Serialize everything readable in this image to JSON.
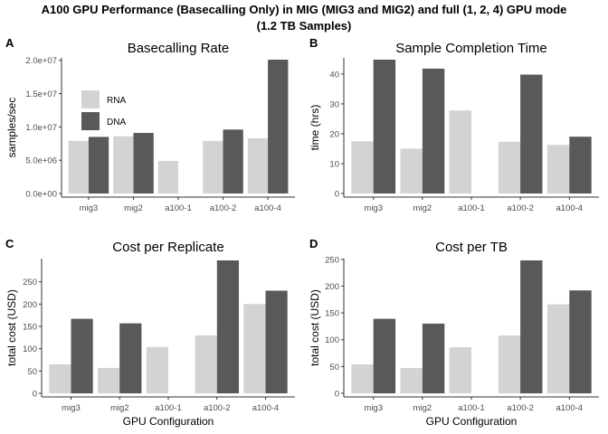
{
  "figure": {
    "title_line1": "A100 GPU Performance (Basecalling Only) in MIG (MIG3 and MIG2) and full (1, 2, 4) GPU mode",
    "title_line2": "(1.2 TB Samples)"
  },
  "colors": {
    "RNA": "#d3d3d3",
    "DNA": "#595959",
    "axis": "#333333",
    "tick_text": "#4d4d4d"
  },
  "chart_data": [
    {
      "panel": "A",
      "type": "bar",
      "title": "Basecalling Rate",
      "xlabel": "",
      "ylabel": "samples/sec",
      "categories": [
        "mig3",
        "mig2",
        "a100-1",
        "a100-2",
        "a100-4"
      ],
      "series": [
        {
          "name": "RNA",
          "values": [
            7900000,
            8600000,
            4900000,
            7900000,
            8300000
          ]
        },
        {
          "name": "DNA",
          "values": [
            8500000,
            9100000,
            null,
            9600000,
            20100000
          ]
        }
      ],
      "ylim": [
        0,
        20100000
      ],
      "yticks": [
        0,
        5000000,
        10000000,
        15000000,
        20000000
      ],
      "ytick_labels": [
        "0.0e+00",
        "5.0e+06",
        "1.0e+07",
        "1.5e+07",
        "2.0e+07"
      ],
      "legend": {
        "entries": [
          "RNA",
          "DNA"
        ],
        "position": "top-left"
      },
      "grid": false
    },
    {
      "panel": "B",
      "type": "bar",
      "title": "Sample Completion Time",
      "xlabel": "",
      "ylabel": "time (hrs)",
      "categories": [
        "mig3",
        "mig2",
        "a100-1",
        "a100-2",
        "a100-4"
      ],
      "series": [
        {
          "name": "RNA",
          "values": [
            17.5,
            15,
            27.8,
            17.3,
            16.3
          ]
        },
        {
          "name": "DNA",
          "values": [
            44.8,
            41.8,
            null,
            39.8,
            19
          ]
        }
      ],
      "ylim": [
        0,
        44.8
      ],
      "yticks": [
        0,
        10,
        20,
        30,
        40
      ],
      "ytick_labels": [
        "0",
        "10",
        "20",
        "30",
        "40"
      ],
      "grid": false
    },
    {
      "panel": "C",
      "type": "bar",
      "title": "Cost per Replicate",
      "xlabel": "GPU Configuration",
      "ylabel": "total cost (USD)",
      "categories": [
        "mig3",
        "mig2",
        "a100-1",
        "a100-2",
        "a100-4"
      ],
      "series": [
        {
          "name": "RNA",
          "values": [
            65,
            57,
            104,
            130,
            200
          ]
        },
        {
          "name": "DNA",
          "values": [
            167,
            157,
            null,
            298,
            230
          ]
        }
      ],
      "ylim": [
        0,
        298
      ],
      "yticks": [
        0,
        50,
        100,
        150,
        200,
        250
      ],
      "ytick_labels": [
        "0",
        "50",
        "100",
        "150",
        "200",
        "250"
      ],
      "grid": false
    },
    {
      "panel": "D",
      "type": "bar",
      "title": "Cost per TB",
      "xlabel": "GPU Configuration",
      "ylabel": "total cost (USD)",
      "categories": [
        "mig3",
        "mig2",
        "a100-1",
        "a100-2",
        "a100-4"
      ],
      "series": [
        {
          "name": "RNA",
          "values": [
            54,
            47,
            86,
            108,
            166
          ]
        },
        {
          "name": "DNA",
          "values": [
            139,
            130,
            null,
            248,
            192
          ]
        }
      ],
      "ylim": [
        0,
        248
      ],
      "yticks": [
        0,
        50,
        100,
        150,
        200,
        250
      ],
      "ytick_labels": [
        "0",
        "50",
        "100",
        "150",
        "200",
        "250"
      ],
      "grid": false
    }
  ]
}
